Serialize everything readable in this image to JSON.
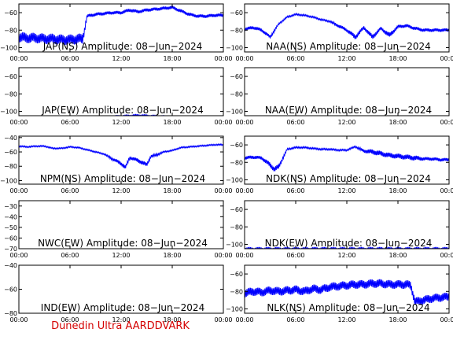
{
  "footer": {
    "credit": "Dunedin Ultra AARDDVARK"
  },
  "colors": {
    "trace": "#0000ff",
    "axis": "#000000",
    "credit": "#d40000"
  },
  "chart_data": [
    {
      "type": "line",
      "title": "JAP(NS) Amplitude: 08-Jun-2024",
      "x_ticks": [
        "00:00",
        "06:00",
        "12:00",
        "18:00",
        "00:00"
      ],
      "y_ticks": [
        -100,
        -80,
        -60
      ],
      "ylim": [
        -105,
        -50
      ],
      "series": [
        {
          "hours": [
            0,
            1,
            2,
            3,
            4,
            5,
            6,
            7,
            7.5,
            8,
            9,
            10,
            11,
            12,
            13,
            14,
            15,
            16,
            17,
            18,
            19,
            20,
            21,
            22,
            23,
            24
          ],
          "values": [
            -88,
            -89,
            -89,
            -90,
            -90,
            -91,
            -91,
            -90,
            -90,
            -64,
            -62,
            -61,
            -60,
            -60,
            -57,
            -59,
            -57,
            -56,
            -55,
            -54,
            -58,
            -62,
            -64,
            -64,
            -63,
            -63
          ],
          "band": [
            6,
            6,
            6,
            6,
            6,
            6,
            6,
            6,
            6,
            2,
            2,
            2,
            2,
            2,
            2,
            2,
            2,
            2,
            2,
            2,
            2,
            2,
            2,
            2,
            2,
            2
          ]
        }
      ]
    },
    {
      "type": "line",
      "title": "NAA(NS) Amplitude: 08-Jun-2024",
      "x_ticks": [
        "00:00",
        "06:00",
        "12:00",
        "18:00",
        "00:00"
      ],
      "y_ticks": [
        -100,
        -80,
        -60
      ],
      "ylim": [
        -105,
        -50
      ],
      "series": [
        {
          "hours": [
            0,
            1,
            2,
            3,
            4,
            5,
            6,
            7,
            8,
            9,
            10,
            11,
            12,
            13,
            14,
            15,
            16,
            17,
            18,
            19,
            20,
            21,
            22,
            23,
            24
          ],
          "values": [
            -79,
            -77,
            -80,
            -88,
            -73,
            -65,
            -62,
            -63,
            -65,
            -68,
            -70,
            -75,
            -80,
            -88,
            -77,
            -88,
            -78,
            -86,
            -76,
            -75,
            -78,
            -80,
            -80,
            -80,
            -80
          ],
          "band": [
            2,
            2,
            2,
            2,
            1,
            1,
            1,
            1,
            1,
            1,
            1,
            2,
            2,
            3,
            2,
            3,
            2,
            3,
            2,
            2,
            2,
            2,
            2,
            2,
            2
          ]
        }
      ]
    },
    {
      "type": "line",
      "title": "JAP(EW) Amplitude: 08-Jun-2024",
      "x_ticks": [
        "00:00",
        "06:00",
        "12:00",
        "18:00",
        "00:00"
      ],
      "y_ticks": [
        -100,
        -80,
        -60
      ],
      "ylim": [
        -105,
        -50
      ],
      "series": [
        {
          "hours": [
            0,
            2,
            4,
            6,
            8,
            10,
            12,
            14,
            16,
            18,
            20,
            22,
            24
          ],
          "values": [
            -111,
            -110,
            -110,
            -110,
            -108,
            -107,
            -106,
            -105,
            -106,
            -107,
            -108,
            -108,
            -108
          ],
          "band": [
            2,
            2,
            2,
            2,
            2,
            2,
            2,
            2,
            2,
            2,
            2,
            2,
            2
          ]
        }
      ]
    },
    {
      "type": "line",
      "title": "NAA(EW) Amplitude: 08-Jun-2024",
      "x_ticks": [
        "00:00",
        "06:00",
        "12:00",
        "18:00",
        "00:00"
      ],
      "y_ticks": [
        -100,
        -80,
        -60
      ],
      "ylim": [
        -105,
        -50
      ],
      "series": [
        {
          "hours": [
            0,
            2,
            4,
            6,
            8,
            10,
            12,
            14,
            16,
            18,
            20,
            22,
            24
          ],
          "values": [
            -108,
            -108,
            -108,
            -108,
            -108,
            -108,
            -108,
            -108,
            -108,
            -108,
            -108,
            -108,
            -108
          ],
          "band": [
            3,
            3,
            3,
            3,
            3,
            3,
            3,
            3,
            3,
            3,
            3,
            3,
            3
          ]
        }
      ]
    },
    {
      "type": "line",
      "title": "NPM(NS) Amplitude: 08-Jun-2024",
      "x_ticks": [
        "00:00",
        "06:00",
        "12:00",
        "18:00",
        "00:00"
      ],
      "y_ticks": [
        -100,
        -80,
        -60,
        -40
      ],
      "ylim": [
        -105,
        -38
      ],
      "series": [
        {
          "hours": [
            0,
            1,
            2,
            3,
            4,
            5,
            6,
            7,
            8,
            9,
            10,
            11,
            12,
            12.5,
            13,
            14,
            15,
            15.5,
            16,
            17,
            18,
            19,
            20,
            21,
            22,
            23,
            24
          ],
          "values": [
            -52,
            -53,
            -52,
            -52,
            -55,
            -55,
            -53,
            -54,
            -57,
            -60,
            -63,
            -70,
            -76,
            -82,
            -68,
            -72,
            -78,
            -66,
            -65,
            -60,
            -58,
            -54,
            -53,
            -52,
            -51,
            -50,
            -50
          ],
          "band": [
            1,
            1,
            1,
            1,
            1,
            1,
            1,
            1,
            1,
            1,
            1,
            2,
            3,
            3,
            2,
            3,
            3,
            2,
            2,
            1,
            1,
            1,
            1,
            1,
            1,
            1,
            1
          ]
        }
      ]
    },
    {
      "type": "line",
      "title": "NDK(NS) Amplitude: 08-Jun-2024",
      "x_ticks": [
        "00:00",
        "06:00",
        "12:00",
        "18:00",
        "00:00"
      ],
      "y_ticks": [
        -100,
        -80,
        -60
      ],
      "ylim": [
        -105,
        -50
      ],
      "series": [
        {
          "hours": [
            0,
            1,
            2,
            3,
            3.5,
            4,
            5,
            6,
            7,
            8,
            9,
            10,
            11,
            12,
            13,
            14,
            15,
            16,
            17,
            18,
            19,
            20,
            21,
            22,
            23,
            24
          ],
          "values": [
            -75,
            -74,
            -75,
            -83,
            -88,
            -85,
            -65,
            -63,
            -63,
            -64,
            -65,
            -65,
            -66,
            -66,
            -62,
            -67,
            -68,
            -70,
            -72,
            -73,
            -74,
            -75,
            -76,
            -76,
            -77,
            -77
          ],
          "band": [
            2,
            2,
            2,
            3,
            3,
            3,
            1,
            1,
            1,
            1,
            1,
            1,
            1,
            1,
            1,
            2,
            3,
            3,
            3,
            3,
            3,
            3,
            2,
            2,
            2,
            2
          ]
        }
      ]
    },
    {
      "type": "line",
      "title": "NWC(EW) Amplitude: 08-Jun-2024",
      "x_ticks": [
        "00:00",
        "06:00",
        "12:00",
        "18:00",
        "00:00"
      ],
      "y_ticks": [
        -70,
        -60,
        -50,
        -40,
        -30
      ],
      "ylim": [
        -70,
        -25
      ],
      "series": [
        {
          "hours": [],
          "values": [],
          "band": []
        }
      ]
    },
    {
      "type": "line",
      "title": "NDK(EW) Amplitude: 08-Jun-2024",
      "x_ticks": [
        "00:00",
        "06:00",
        "12:00",
        "18:00",
        "00:00"
      ],
      "y_ticks": [
        -100,
        -80,
        -60
      ],
      "ylim": [
        -105,
        -50
      ],
      "series": [
        {
          "hours": [
            0,
            2,
            4,
            6,
            8,
            10,
            12,
            14,
            16,
            18,
            20,
            22,
            24
          ],
          "values": [
            -106,
            -106,
            -106,
            -106,
            -106,
            -106,
            -106,
            -106,
            -106,
            -106,
            -106,
            -106,
            -106
          ],
          "band": [
            3,
            3,
            3,
            3,
            3,
            3,
            3,
            3,
            3,
            3,
            3,
            3,
            3
          ]
        }
      ]
    },
    {
      "type": "line",
      "title": "IND(EW) Amplitude: 08-Jun-2024",
      "x_ticks": [
        "00:00",
        "06:00",
        "12:00",
        "18:00",
        "00:00"
      ],
      "y_ticks": [
        -80,
        -60,
        -40
      ],
      "ylim": [
        -80,
        -40
      ],
      "series": [
        {
          "hours": [],
          "values": [],
          "band": []
        }
      ]
    },
    {
      "type": "line",
      "title": "NLK(NS) Amplitude: 08-Jun-2024",
      "x_ticks": [
        "00:00",
        "06:00",
        "12:00",
        "18:00",
        "00:00"
      ],
      "y_ticks": [
        -100,
        -80,
        -60
      ],
      "ylim": [
        -105,
        -50
      ],
      "series": [
        {
          "hours": [
            0,
            1,
            2,
            3,
            4,
            5,
            6,
            7,
            8,
            9,
            10,
            11,
            12,
            13,
            14,
            15,
            16,
            17,
            18,
            19,
            19.5,
            20,
            21,
            22,
            23,
            24
          ],
          "values": [
            -82,
            -80,
            -81,
            -79,
            -80,
            -79,
            -78,
            -80,
            -77,
            -78,
            -75,
            -74,
            -73,
            -72,
            -72,
            -71,
            -71,
            -72,
            -72,
            -72,
            -73,
            -92,
            -90,
            -88,
            -87,
            -86
          ],
          "band": [
            5,
            5,
            5,
            5,
            5,
            5,
            5,
            5,
            5,
            5,
            5,
            5,
            5,
            5,
            5,
            5,
            5,
            5,
            5,
            5,
            5,
            5,
            5,
            5,
            5,
            5
          ]
        }
      ]
    }
  ]
}
